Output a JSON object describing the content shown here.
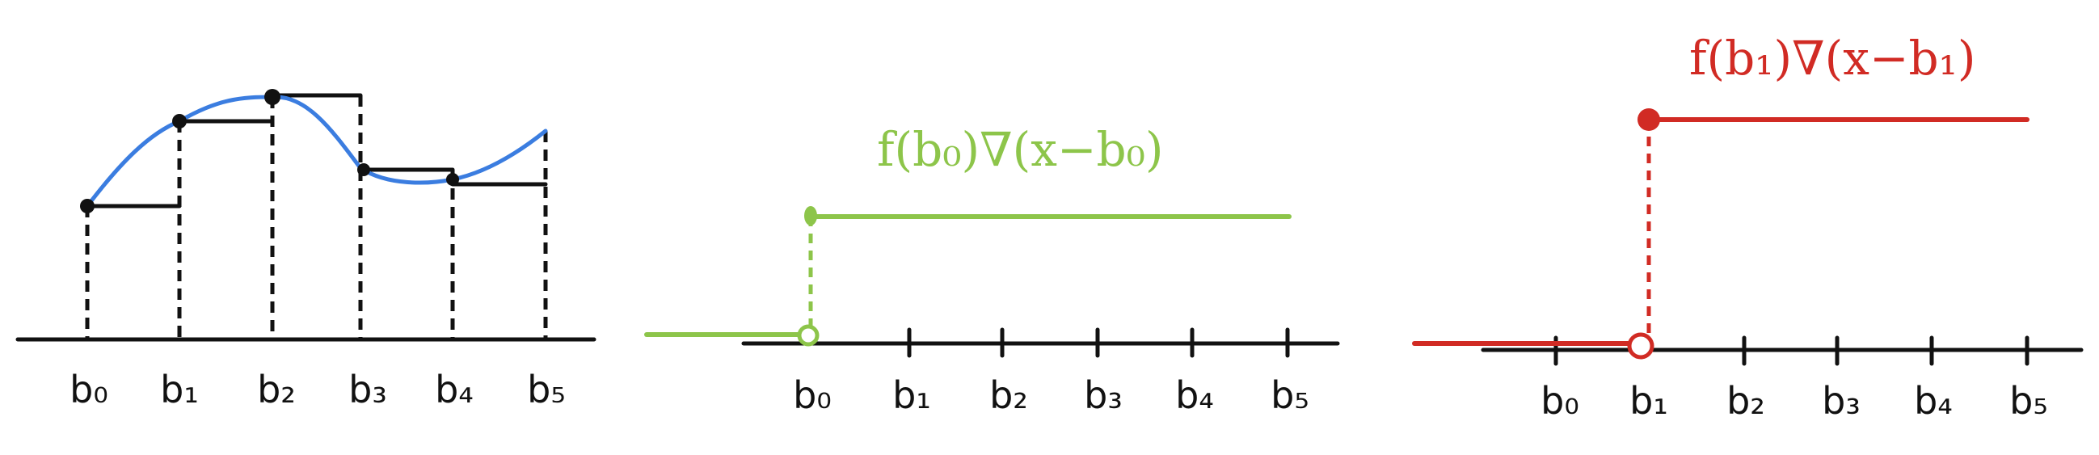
{
  "colors": {
    "axis": "#111111",
    "curve": "#3B7DE0",
    "green": "#8DC54A",
    "red": "#D12B24",
    "background": "#FFFFFF"
  },
  "panels": [
    {
      "name": "riemann-approximation",
      "tick_labels": [
        "b₀",
        "b₁",
        "b₂",
        "b₃",
        "b₄",
        "b₅"
      ]
    },
    {
      "name": "step-at-b0",
      "formula": "f(b₀)∇(x−b₀)",
      "tick_labels": [
        "b₀",
        "b₁",
        "b₂",
        "b₃",
        "b₄",
        "b₅"
      ]
    },
    {
      "name": "step-at-b1",
      "formula": "f(b₁)∇(x−b₁)",
      "tick_labels": [
        "b₀",
        "b₁",
        "b₂",
        "b₃",
        "b₄",
        "b₅"
      ]
    }
  ]
}
